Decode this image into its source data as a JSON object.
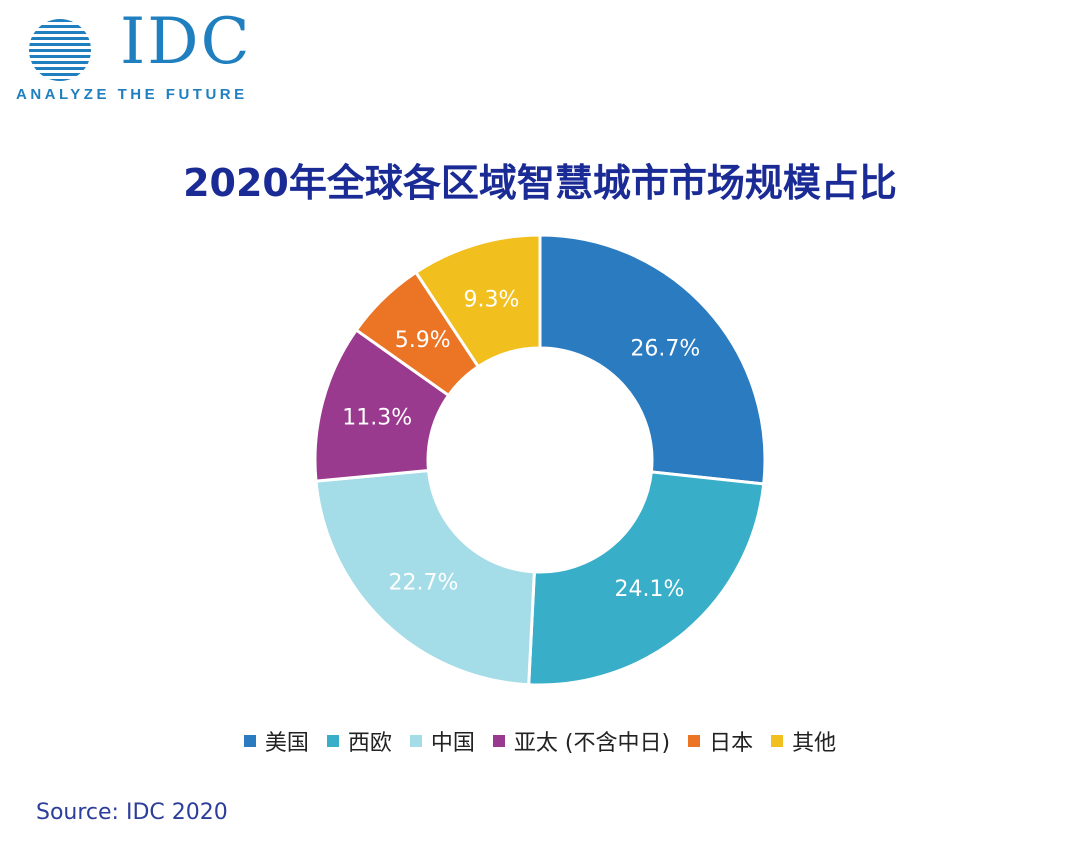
{
  "logo": {
    "wordmark": "IDC",
    "tagline": "ANALYZE THE FUTURE"
  },
  "chart_data": {
    "type": "pie",
    "style": "donut",
    "title": "2020年全球各区域智慧城市市场规模占比",
    "unit": "%",
    "categories": [
      "美国",
      "西欧",
      "中国",
      "亚太 (不含中日)",
      "日本",
      "其他"
    ],
    "values": [
      26.7,
      24.1,
      22.7,
      11.3,
      5.9,
      9.3
    ],
    "labels": [
      "26.7%",
      "24.1%",
      "22.7%",
      "11.3%",
      "5.9%",
      "9.3%"
    ],
    "colors": [
      "#2a7bbf",
      "#38aec9",
      "#a4dce8",
      "#9a3a8e",
      "#ec7525",
      "#f2c01e"
    ],
    "legend_position": "bottom-center",
    "source": "Source: IDC 2020"
  }
}
